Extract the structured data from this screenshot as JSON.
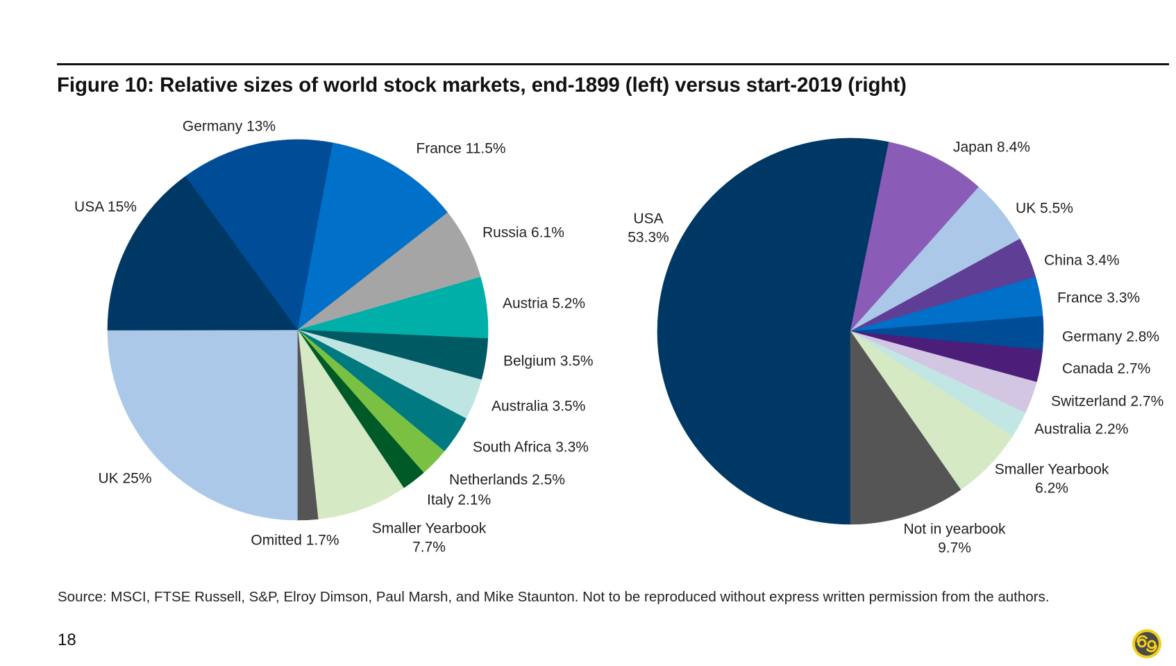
{
  "page": {
    "figure_title": "Figure 10: Relative sizes of world stock markets, end-1899 (left) versus start-2019 (right)",
    "source": "Source: MSCI, FTSE Russell, S&P, Elroy Dimson, Paul Marsh, and Mike Staunton. Not to be reproduced without express written permission from the authors.",
    "page_number": "18",
    "logo_icon": "circled-69-logo-icon"
  },
  "chart_data": [
    {
      "type": "pie",
      "title": "end-1899",
      "position": "left",
      "start": "bottom",
      "direction": "clockwise",
      "slices": [
        {
          "name": "UK",
          "value": 25,
          "label": "UK 25%",
          "color": "#abc8e8"
        },
        {
          "name": "USA",
          "value": 15,
          "label": "USA 15%",
          "color": "#003865"
        },
        {
          "name": "Germany",
          "value": 13,
          "label": "Germany 13%",
          "color": "#004c97"
        },
        {
          "name": "France",
          "value": 11.5,
          "label": "France 11.5%",
          "color": "#0070c8"
        },
        {
          "name": "Russia",
          "value": 6.1,
          "label": "Russia 6.1%",
          "color": "#a5a5a5"
        },
        {
          "name": "Austria",
          "value": 5.2,
          "label": "Austria 5.2%",
          "color": "#00b0a8"
        },
        {
          "name": "Belgium",
          "value": 3.5,
          "label": "Belgium 3.5%",
          "color": "#005a64"
        },
        {
          "name": "Australia",
          "value": 3.5,
          "label": "Australia 3.5%",
          "color": "#bfe5e2"
        },
        {
          "name": "South Africa",
          "value": 3.3,
          "label": "South Africa 3.3%",
          "color": "#007a80"
        },
        {
          "name": "Netherlands",
          "value": 2.5,
          "label": "Netherlands 2.5%",
          "color": "#7ac143"
        },
        {
          "name": "Italy",
          "value": 2.1,
          "label": "Italy 2.1%",
          "color": "#005a28"
        },
        {
          "name": "Smaller Yearbook",
          "value": 7.7,
          "label": "Smaller Yearbook",
          "label2": "7.7%",
          "color": "#d5e9c5"
        },
        {
          "name": "Omitted",
          "value": 1.7,
          "label": "Omitted 1.7%",
          "color": "#555555"
        }
      ]
    },
    {
      "type": "pie",
      "title": "start-2019",
      "position": "right",
      "start": "bottom",
      "direction": "clockwise",
      "slices": [
        {
          "name": "USA",
          "value": 53.3,
          "label": "USA",
          "label2": "53.3%",
          "color": "#003865"
        },
        {
          "name": "Japan",
          "value": 8.4,
          "label": "Japan 8.4%",
          "color": "#8a5cb8"
        },
        {
          "name": "UK",
          "value": 5.5,
          "label": "UK 5.5%",
          "color": "#abc8e8"
        },
        {
          "name": "China",
          "value": 3.4,
          "label": "China 3.4%",
          "color": "#5f3f96"
        },
        {
          "name": "France",
          "value": 3.3,
          "label": "France 3.3%",
          "color": "#0070c8"
        },
        {
          "name": "Germany",
          "value": 2.8,
          "label": "Germany 2.8%",
          "color": "#004c97"
        },
        {
          "name": "Canada",
          "value": 2.7,
          "label": "Canada 2.7%",
          "color": "#4c1e7a"
        },
        {
          "name": "Switzerland",
          "value": 2.7,
          "label": "Switzerland 2.7%",
          "color": "#d2c6e2"
        },
        {
          "name": "Australia",
          "value": 2.2,
          "label": "Australia 2.2%",
          "color": "#c2e6e4"
        },
        {
          "name": "Smaller Yearbook",
          "value": 6.2,
          "label": "Smaller Yearbook",
          "label2": "6.2%",
          "color": "#d5e9c5"
        },
        {
          "name": "Not in yearbook",
          "value": 9.7,
          "label": "Not in yearbook",
          "label2": "9.7%",
          "color": "#555555"
        }
      ]
    }
  ]
}
